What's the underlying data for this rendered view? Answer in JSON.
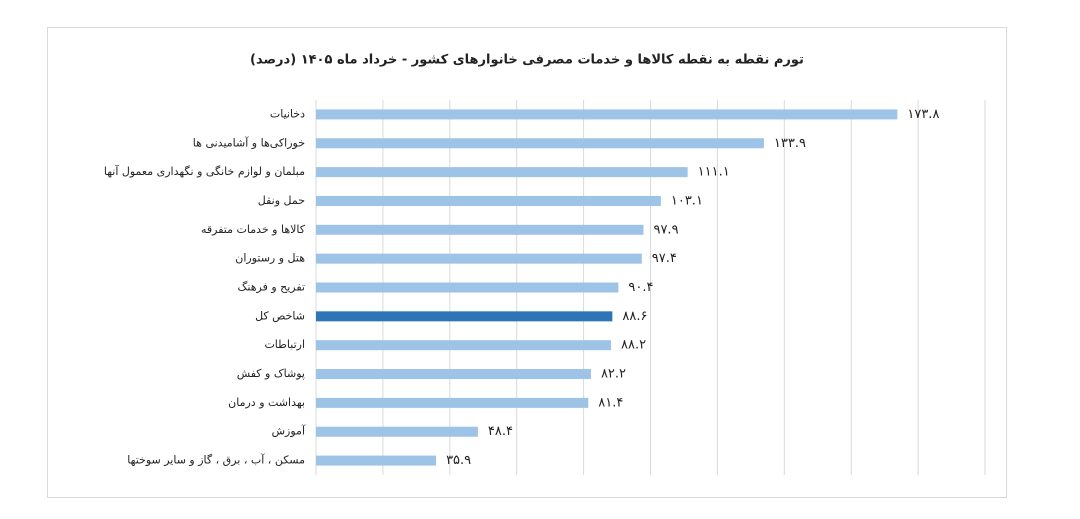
{
  "chart_data": {
    "type": "barh",
    "title": "تورم نقطه به نقطه کالاها و خدمات مصرفی خانوارهای کشور - خرداد ماه ۱۴۰۵ (درصد)",
    "categories": [
      "دخانیات",
      "خوراکی‌ها و آشامیدنی ها",
      "مبلمان و لوازم خانگی و نگهداری معمول آنها",
      "حمل ونقل",
      "کالاها و خدمات متفرقه",
      "هتل و رستوران",
      "تفریح و فرهنگ",
      "شاخص کل",
      "ارتباطات",
      "پوشاک و کفش",
      "بهداشت و درمان",
      "آموزش",
      "مسکن ، آب ، برق ، گاز و سایر سوختها"
    ],
    "values": [
      173.8,
      133.9,
      111.1,
      103.1,
      97.9,
      97.4,
      90.4,
      88.6,
      88.2,
      82.2,
      81.4,
      48.4,
      35.9
    ],
    "value_labels": [
      "۱۷۳.۸",
      "۱۳۳.۹",
      "۱۱۱.۱",
      "۱۰۳.۱",
      "۹۷.۹",
      "۹۷.۴",
      "۹۰.۴",
      "۸۸.۶",
      "۸۸.۲",
      "۸۲.۲",
      "۸۱.۴",
      "۴۸.۴",
      "۳۵.۹"
    ],
    "colors": [
      "#9dc3e6",
      "#9dc3e6",
      "#9dc3e6",
      "#9dc3e6",
      "#9dc3e6",
      "#9dc3e6",
      "#9dc3e6",
      "#2e75b6",
      "#9dc3e6",
      "#9dc3e6",
      "#9dc3e6",
      "#9dc3e6",
      "#9dc3e6"
    ],
    "xlim": [
      0,
      200
    ],
    "xticks": [
      0,
      20,
      40,
      60,
      80,
      100,
      120,
      140,
      160,
      180,
      200
    ],
    "grid": true
  }
}
